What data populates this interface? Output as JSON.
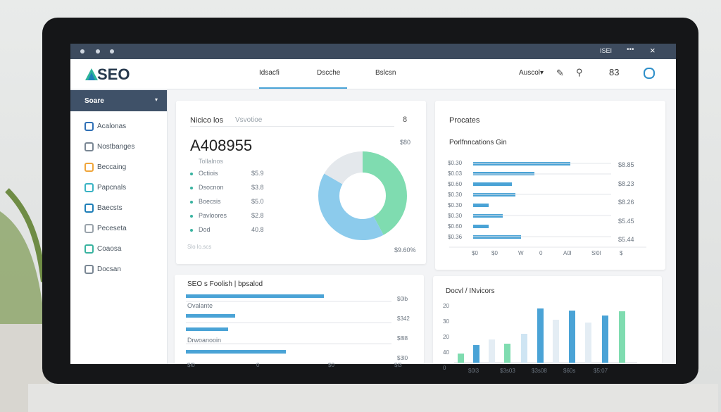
{
  "window": {
    "tag": "ISEI",
    "menu": "•••",
    "close": "×"
  },
  "header": {
    "logo": "SEO",
    "nav": [
      "Idsacfi",
      "Dscche",
      "Bslcsn"
    ],
    "account": "Auscol▾",
    "count": "83"
  },
  "sidebar": {
    "title": "Soare",
    "items": [
      "Acalonas",
      "Nostbanges",
      "Beccaing",
      "Papcnals",
      "Baecsts",
      "Peceseta",
      "Coaosa",
      "Docsan"
    ]
  },
  "overview": {
    "title": "Nicico los",
    "subtitle": "Vsvotioe",
    "badge": "8",
    "total": "A408955",
    "total_label": "Tollalnos",
    "side_note": "$80",
    "rows": [
      [
        "Octiois",
        "$5.9"
      ],
      [
        "Dsocnon",
        "$3.8"
      ],
      [
        "Boecsis",
        "$5.0"
      ],
      [
        "Pavloores",
        "$2.8"
      ],
      [
        "Dod",
        "40.8"
      ]
    ],
    "footer_left": "Slo lo.scs",
    "footer": "$9.60%"
  },
  "performance": {
    "title": "Procates",
    "subtitle": "Porlfnncations Gin",
    "left_labels": [
      "$0.30",
      "$0.03",
      "$0.60",
      "$0.30",
      "$0.30",
      "$0.30",
      "$0.60",
      "$0.36"
    ],
    "right_labels": [
      "$8.85",
      "$8.23",
      "$8.26",
      "$5.45",
      "$5.44"
    ],
    "axis": [
      "$0",
      "$0",
      "W",
      "0",
      "A0l",
      "Sl0l",
      "$"
    ]
  },
  "keywords": {
    "title": "SEO s Foolish | bpsalod",
    "labels": [
      "Ovalante",
      "Drwoanooin"
    ],
    "right_labels": [
      "$0lb",
      "$342",
      "$8l8",
      "$3l0"
    ],
    "axis": [
      "$l0",
      "0",
      "$0",
      "$l3"
    ]
  },
  "devices": {
    "title": "Docvl / INvicors",
    "y_labels": [
      "20",
      "30",
      "20",
      "40",
      "0"
    ],
    "x_labels": [
      "$0l3",
      "$3s03",
      "$3s08",
      "$60s",
      "$5:07"
    ]
  }
}
